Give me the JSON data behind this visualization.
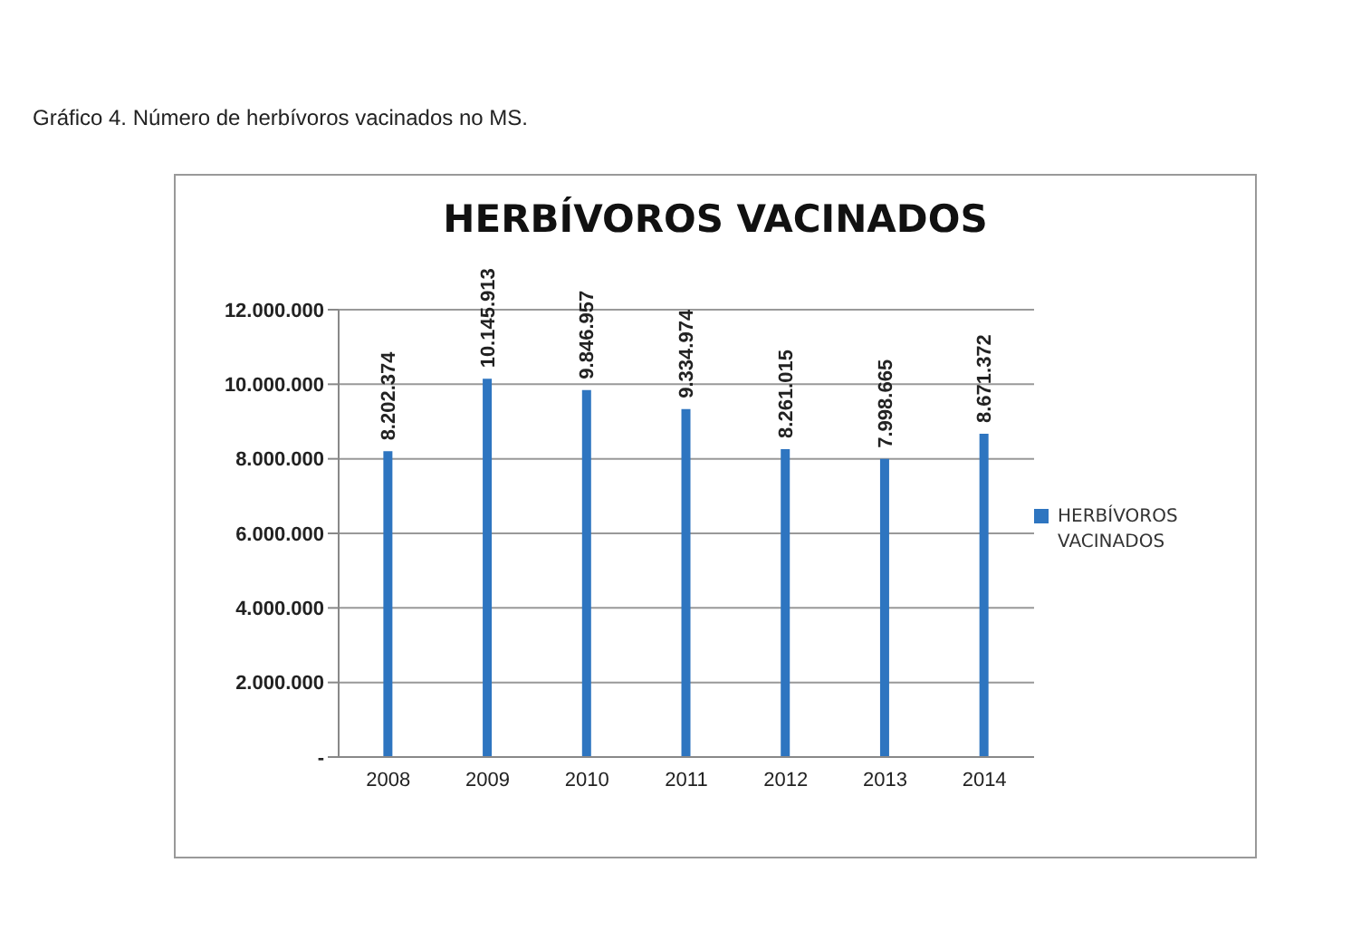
{
  "chart_data": {
    "type": "bar",
    "title": "HERBÍVOROS VACINADOS",
    "annotations": [
      "Gráfico 4. Número de herbívoros vacinados no MS."
    ],
    "categories": [
      "2008",
      "2009",
      "2010",
      "2011",
      "2012",
      "2013",
      "2014"
    ],
    "series": [
      {
        "name": "HERBÍVOROS VACINADOS",
        "color": "#2e75c0",
        "values": [
          8202374,
          10145913,
          9846957,
          9334974,
          8261015,
          7998665,
          8671372
        ],
        "value_labels": [
          "8.202.374",
          "10.145.913",
          "9.846.957",
          "9.334.974",
          "8.261.015",
          "7.998.665",
          "8.671.372"
        ]
      }
    ],
    "ylim": [
      0,
      12000000
    ],
    "yticks": [
      {
        "value": 0,
        "label": "-"
      },
      {
        "value": 2000000,
        "label": "2.000.000"
      },
      {
        "value": 4000000,
        "label": "4.000.000"
      },
      {
        "value": 6000000,
        "label": "6.000.000"
      },
      {
        "value": 8000000,
        "label": "8.000.000"
      },
      {
        "value": 10000000,
        "label": "10.000.000"
      },
      {
        "value": 12000000,
        "label": "12.000.000"
      }
    ],
    "grid": "y",
    "legend": "right"
  }
}
